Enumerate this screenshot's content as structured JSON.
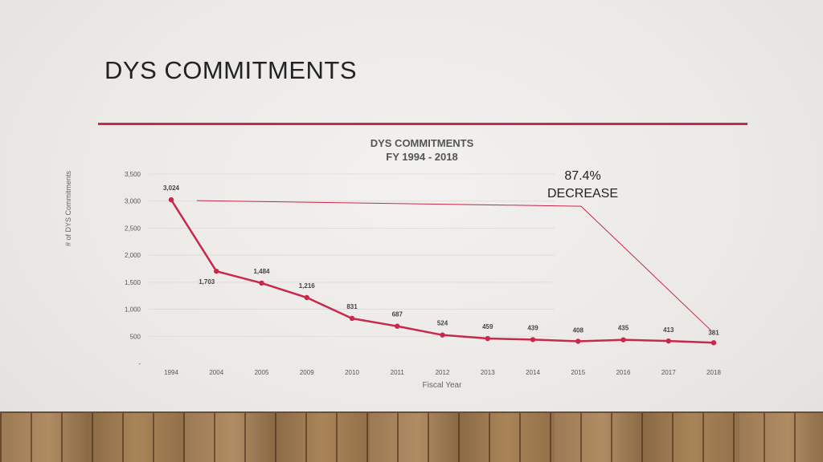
{
  "slide": {
    "title": "DYS COMMITMENTS"
  },
  "chart_data": {
    "type": "line",
    "title": "DYS COMMITMENTS",
    "subtitle": "FY 1994 - 2018",
    "xlabel": "Fiscal Year",
    "ylabel": "# of DYS Commitments",
    "categories": [
      "1994",
      "2004",
      "2005",
      "2009",
      "2010",
      "2011",
      "2012",
      "2013",
      "2014",
      "2015",
      "2016",
      "2017",
      "2018"
    ],
    "values": [
      3024,
      1703,
      1484,
      1216,
      831,
      687,
      524,
      459,
      439,
      408,
      435,
      413,
      381
    ],
    "data_labels": [
      "3,024",
      "1,703",
      "1,484",
      "1,216",
      "831",
      "687",
      "524",
      "459",
      "439",
      "408",
      "435",
      "413",
      "381"
    ],
    "y_ticks": [
      {
        "value": 0,
        "label": "-"
      },
      {
        "value": 500,
        "label": "500"
      },
      {
        "value": 1000,
        "label": "1,000"
      },
      {
        "value": 1500,
        "label": "1,500"
      },
      {
        "value": 2000,
        "label": "2,000"
      },
      {
        "value": 2500,
        "label": "2,500"
      },
      {
        "value": 3000,
        "label": "3,000"
      },
      {
        "value": 3500,
        "label": "3,500"
      }
    ],
    "ylim": [
      0,
      3500
    ],
    "grid": true,
    "line_color": "#c8284a",
    "annotation": {
      "line1": "87.4%",
      "line2": "DECREASE"
    }
  },
  "colors": {
    "accent": "#c8284a"
  }
}
